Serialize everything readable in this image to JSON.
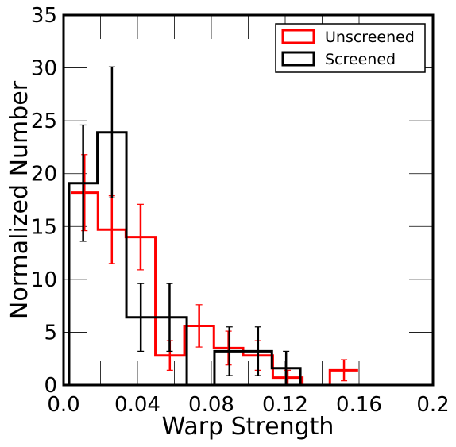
{
  "chart_data": {
    "type": "histogram",
    "title": "",
    "xlabel": "Warp Strength",
    "ylabel": "Normalized Number",
    "xlim": [
      0.0,
      0.2
    ],
    "ylim": [
      0,
      35
    ],
    "x_ticks": [
      0.0,
      0.04,
      0.08,
      0.12,
      0.16,
      0.2
    ],
    "x_tick_labels": [
      "0.0",
      "0.04",
      "0.08",
      "0.12",
      "0.16",
      "0.2"
    ],
    "y_ticks": [
      0,
      5,
      10,
      15,
      20,
      25,
      30,
      35
    ],
    "y_tick_labels": [
      "0",
      "5",
      "10",
      "15",
      "20",
      "25",
      "30",
      "35"
    ],
    "legend_position": "top-right",
    "series": [
      {
        "name": "Unscreened",
        "color": "#ff0000",
        "bin_edges": [
          0.004,
          0.0186,
          0.0337,
          0.0497,
          0.0654,
          0.0814,
          0.0972,
          0.1133,
          0.1293,
          0.1442,
          0.1595
        ],
        "values": [
          18.2,
          14.7,
          14.0,
          2.8,
          5.6,
          3.5,
          2.8,
          0.7,
          0.0,
          1.4
        ],
        "errors": [
          3.6,
          3.2,
          3.1,
          1.4,
          2.0,
          1.6,
          1.4,
          0.7,
          0.0,
          1.0
        ]
      },
      {
        "name": "Screened",
        "color": "#000000",
        "bin_edges": [
          0.003,
          0.0183,
          0.034,
          0.0667,
          0.0817,
          0.0979,
          0.1128,
          0.1282
        ],
        "bar_values": [
          19.1,
          23.9,
          6.4,
          0.0,
          3.2,
          3.2,
          1.6
        ],
        "error_points": [
          {
            "x": 0.0106,
            "y": 19.1,
            "err": 5.5
          },
          {
            "x": 0.0262,
            "y": 23.9,
            "err": 6.2
          },
          {
            "x": 0.0418,
            "y": 6.4,
            "err": 3.2
          },
          {
            "x": 0.0574,
            "y": 6.4,
            "err": 3.2
          },
          {
            "x": 0.0898,
            "y": 3.2,
            "err": 2.3
          },
          {
            "x": 0.1053,
            "y": 3.2,
            "err": 2.3
          },
          {
            "x": 0.1205,
            "y": 1.6,
            "err": 1.6
          }
        ]
      }
    ]
  }
}
